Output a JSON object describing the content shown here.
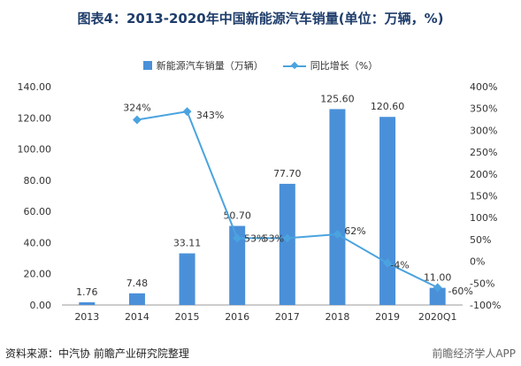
{
  "title": "图表4：2013-2020年中国新能源汽车销量(单位：万辆，%)",
  "legend": {
    "bar": "新能源汽车销量（万辆）",
    "line": "同比增长（%）"
  },
  "footer": "资料来源：中汽协 前瞻产业研究院整理",
  "brand": "前瞻经济学人APP",
  "colors": {
    "bar": "#4a90d9",
    "line": "#4aa3df",
    "title": "#1f3d6b"
  },
  "chart_data": {
    "type": "bar",
    "categories": [
      "2013",
      "2014",
      "2015",
      "2016",
      "2017",
      "2018",
      "2019",
      "2020Q1"
    ],
    "series": [
      {
        "name": "新能源汽车销量（万辆）",
        "type": "bar",
        "axis": "left",
        "values": [
          1.76,
          7.48,
          33.11,
          50.7,
          77.7,
          125.6,
          120.6,
          11.0
        ],
        "labels": [
          "1.76",
          "7.48",
          "33.11",
          "50.70",
          "77.70",
          "125.60",
          "120.60",
          "11.00"
        ]
      },
      {
        "name": "同比增长（%）",
        "type": "line",
        "axis": "right",
        "values": [
          null,
          324,
          343,
          53,
          53,
          62,
          -4,
          -60
        ],
        "labels": [
          "",
          "324%",
          "343%",
          "53%",
          "53%",
          "62%",
          "-4%",
          "-60%"
        ]
      }
    ],
    "left_axis": {
      "ylim": [
        0,
        140
      ],
      "ticks": [
        "0.00",
        "20.00",
        "40.00",
        "60.00",
        "80.00",
        "100.00",
        "120.00",
        "140.00"
      ]
    },
    "right_axis": {
      "ylim": [
        -100,
        400
      ],
      "ticks": [
        "-100%",
        "-50%",
        "0%",
        "50%",
        "100%",
        "150%",
        "200%",
        "250%",
        "300%",
        "350%",
        "400%"
      ]
    },
    "grid": false,
    "legend_position": "top-center"
  }
}
